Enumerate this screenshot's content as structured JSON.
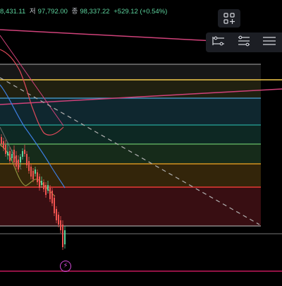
{
  "header": {
    "high_value": "8,431.11",
    "low_label": "저",
    "low_value": "97,792.00",
    "close_label": "종",
    "close_value": "98,337.22",
    "change": "+529.12 (+0.54%)"
  },
  "toolbar": {
    "layout_icon": "grid-plus-icon",
    "tools": [
      "range-measure-icon",
      "price-measure-icon",
      "lines-icon"
    ]
  },
  "chart": {
    "fib_colors": [
      "#9e9e9e",
      "#f2c94c",
      "#4aa3d6",
      "#26a69a",
      "#6abf69",
      "#f5a623",
      "#e53935",
      "#9e9e9e"
    ],
    "pink_line": "#d0427a",
    "up_color": "#5dd39e",
    "down_color": "#ef5350"
  },
  "marker": {
    "icon": "lightning-icon"
  }
}
